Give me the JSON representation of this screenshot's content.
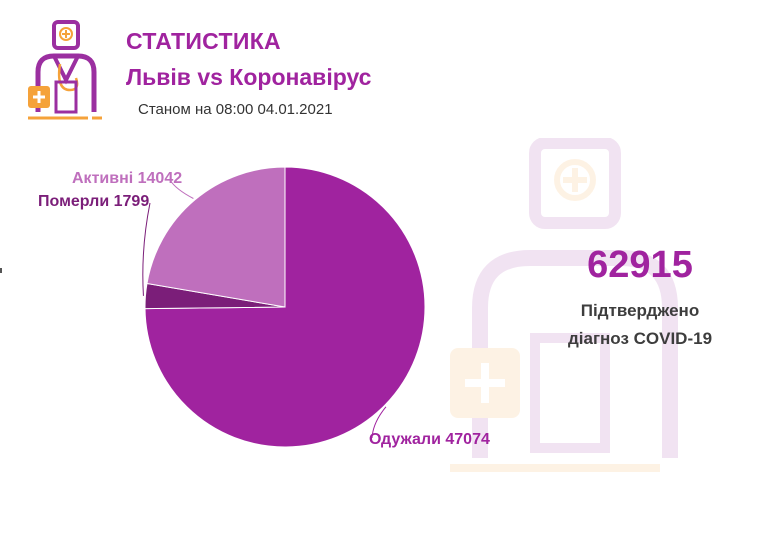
{
  "header": {
    "title": "СТАТИСТИКА",
    "subtitle": "Львів vs Коронавірус",
    "date": "Станом на 08:00 04.01.2021"
  },
  "summary": {
    "total": "62915",
    "label_line1": "Підтверджено",
    "label_line2": "діагноз COVID-19"
  },
  "colors": {
    "title": "#a0239f",
    "recovered": "#a0239f",
    "active": "#bf6fbd",
    "dead": "#7b1e79",
    "logo_purple": "#9b2fa0",
    "logo_orange": "#f5a23a"
  },
  "icons": {
    "logo": "doctor-icon",
    "watermark": "doctor-icon"
  },
  "chart_data": {
    "type": "pie",
    "title": "",
    "start_angle_deg": 0,
    "slices": [
      {
        "name": "Одужали",
        "value": 47074,
        "label": "Одужали 47074",
        "color": "#a0239f"
      },
      {
        "name": "Померли",
        "value": 1799,
        "label": "Померли 1799",
        "color": "#7b1e79"
      },
      {
        "name": "Активні",
        "value": 14042,
        "label": "Активні 14042",
        "color": "#bf6fbd"
      }
    ]
  }
}
